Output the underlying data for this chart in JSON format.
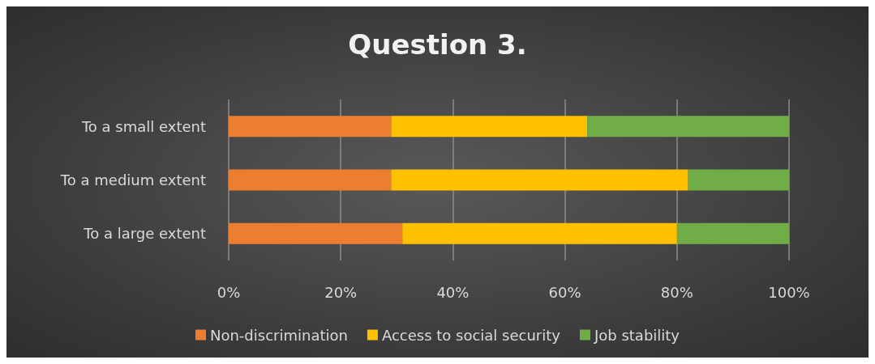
{
  "chart_data": {
    "type": "bar",
    "title": "Question 3.",
    "orientation": "horizontal",
    "stacked": true,
    "categories": [
      "To a small extent",
      "To a medium extent",
      "To a large extent"
    ],
    "series": [
      {
        "name": "Non-discrimination",
        "color": "#ed7d31",
        "values": [
          29,
          29,
          31
        ]
      },
      {
        "name": "Access to social security",
        "color": "#ffc000",
        "values": [
          35,
          53,
          49
        ]
      },
      {
        "name": "Job stability",
        "color": "#70ad47",
        "values": [
          36,
          18,
          20
        ]
      }
    ],
    "xlim": [
      0,
      100
    ],
    "xticks": [
      {
        "value": 0,
        "label": "0%"
      },
      {
        "value": 20,
        "label": "20%"
      },
      {
        "value": 40,
        "label": "40%"
      },
      {
        "value": 60,
        "label": "60%"
      },
      {
        "value": 80,
        "label": "80%"
      },
      {
        "value": 100,
        "label": "100%"
      }
    ],
    "grid": "x",
    "legend": "bottom"
  }
}
